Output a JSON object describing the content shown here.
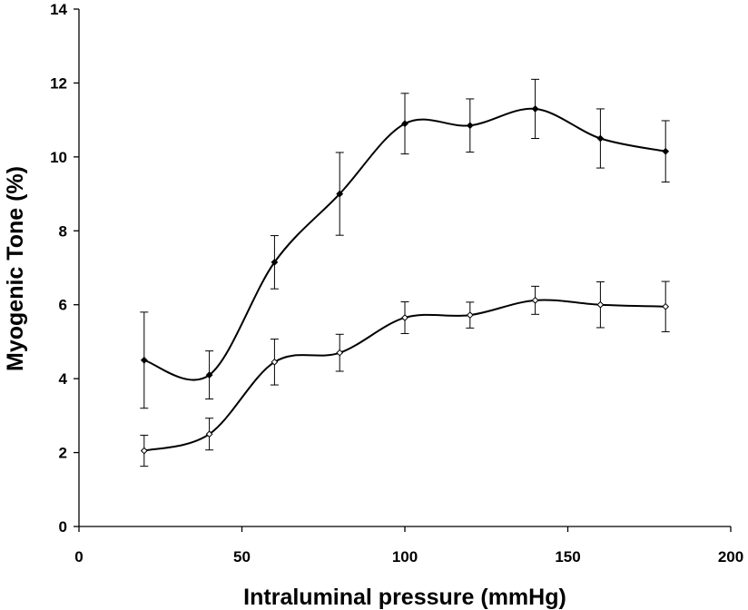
{
  "chart_data": {
    "type": "line",
    "title": "",
    "xlabel": "Intraluminal pressure (mmHg)",
    "ylabel": "Myogenic Tone (%)",
    "xlim": [
      0,
      200
    ],
    "ylim": [
      0,
      14
    ],
    "xticks": [
      0,
      50,
      100,
      150,
      200
    ],
    "yticks": [
      0,
      2,
      4,
      6,
      8,
      10,
      12,
      14
    ],
    "grid": false,
    "legend": "none",
    "smooth": true,
    "x": [
      20,
      40,
      60,
      80,
      100,
      120,
      140,
      160,
      180
    ],
    "series": [
      {
        "marker": "filled-diamond",
        "color": "#000000",
        "values": [
          4.5,
          4.1,
          7.15,
          9.0,
          10.9,
          10.85,
          11.3,
          10.5,
          10.15
        ],
        "error": [
          1.3,
          0.65,
          0.72,
          1.12,
          0.82,
          0.72,
          0.8,
          0.8,
          0.83
        ]
      },
      {
        "marker": "open-diamond",
        "color": "#000000",
        "values": [
          2.05,
          2.5,
          4.45,
          4.7,
          5.65,
          5.72,
          6.12,
          6.0,
          5.95
        ],
        "error": [
          0.42,
          0.43,
          0.62,
          0.5,
          0.43,
          0.35,
          0.38,
          0.62,
          0.68
        ]
      }
    ]
  }
}
